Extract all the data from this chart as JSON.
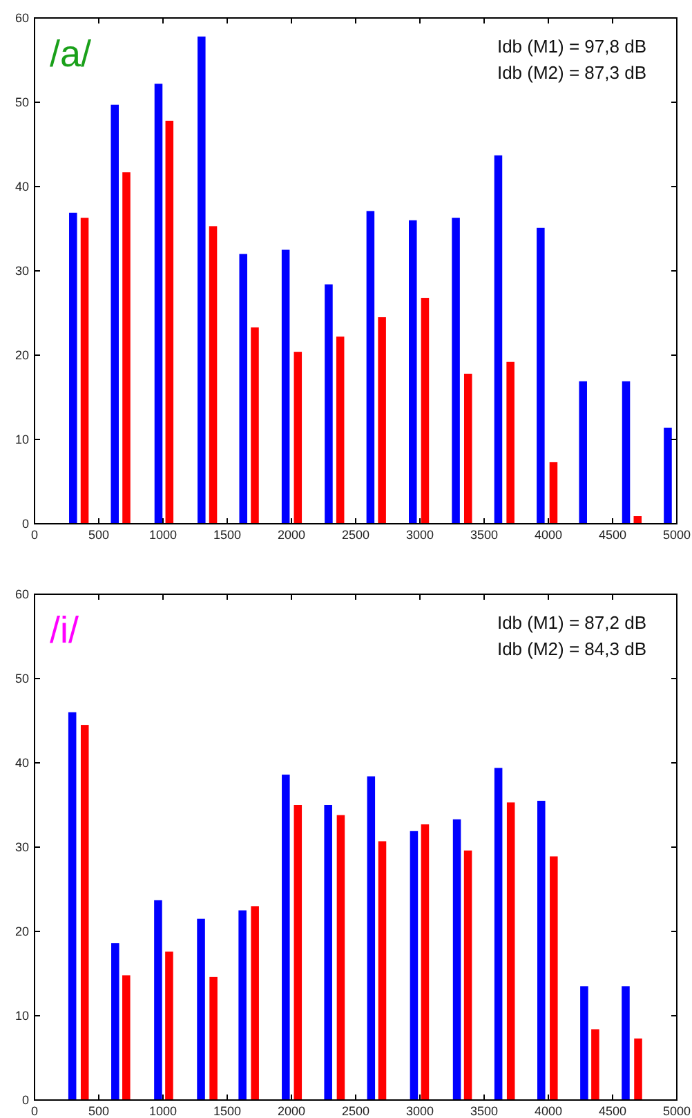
{
  "chart_data": [
    {
      "type": "bar",
      "title": "/a/",
      "annotations": [
        "Idb (M1) = 97,8 dB",
        "Idb (M2) = 87,3 dB"
      ],
      "xlim": [
        0,
        5000
      ],
      "xticks": [
        0,
        500,
        1000,
        1500,
        2000,
        2500,
        3000,
        3500,
        4000,
        4500,
        5000
      ],
      "ylim": [
        0,
        60
      ],
      "yticks": [
        0,
        10,
        20,
        30,
        40,
        50,
        60
      ],
      "grid": false,
      "series": [
        {
          "color": "#0000ff",
          "x": [
            300,
            625,
            965,
            1300,
            1625,
            1955,
            2290,
            2615,
            2945,
            3280,
            3610,
            3940,
            4270,
            4605,
            4930
          ],
          "values": [
            36.9,
            49.7,
            52.2,
            57.8,
            32.0,
            32.5,
            28.4,
            37.1,
            36.0,
            36.3,
            43.7,
            35.1,
            16.9,
            16.9,
            11.4
          ]
        },
        {
          "color": "#ff0000",
          "x": [
            390,
            715,
            1050,
            1390,
            1715,
            2050,
            2380,
            2705,
            3040,
            3375,
            3705,
            4040,
            4360,
            4695
          ],
          "values": [
            36.3,
            41.7,
            47.8,
            35.3,
            23.3,
            20.4,
            22.2,
            24.5,
            26.8,
            17.8,
            19.2,
            7.3,
            null,
            0.9
          ]
        }
      ]
    },
    {
      "type": "bar",
      "title": "/i/",
      "annotations": [
        "Idb (M1) = 87,2 dB",
        "Idb (M2) = 84,3 dB"
      ],
      "xlim": [
        0,
        5000
      ],
      "xticks": [
        0,
        500,
        1000,
        1500,
        2000,
        2500,
        3000,
        3500,
        4000,
        4500,
        5000
      ],
      "ylim": [
        0,
        60
      ],
      "yticks": [
        0,
        10,
        20,
        30,
        40,
        50,
        60
      ],
      "grid": false,
      "series": [
        {
          "color": "#0000ff",
          "x": [
            294,
            628,
            962,
            1296,
            1619,
            1956,
            2286,
            2620,
            2954,
            3288,
            3611,
            3945,
            4279,
            4602
          ],
          "values": [
            46.0,
            18.6,
            23.7,
            21.5,
            22.5,
            38.6,
            35.0,
            38.4,
            31.9,
            33.3,
            39.4,
            35.5,
            13.5,
            13.5
          ]
        },
        {
          "color": "#ff0000",
          "x": [
            391,
            714,
            1048,
            1393,
            1716,
            2050,
            2384,
            2707,
            3040,
            3374,
            3708,
            4042,
            4365,
            4699
          ],
          "values": [
            44.5,
            14.8,
            17.6,
            14.6,
            23.0,
            35.0,
            33.8,
            30.7,
            32.7,
            29.6,
            35.3,
            28.9,
            8.4,
            7.3
          ]
        }
      ]
    }
  ]
}
